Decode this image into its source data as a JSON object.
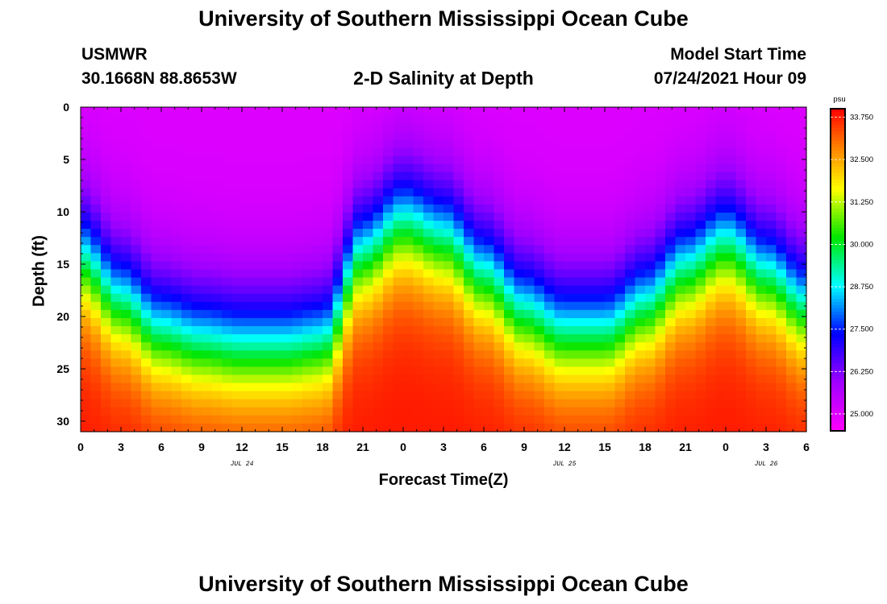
{
  "title_top": "University of Southern Mississippi Ocean Cube",
  "title_bottom": "University of Southern Mississippi Ocean Cube",
  "station": {
    "name": "USMWR",
    "coords": "30.1668N  88.8653W"
  },
  "plot_title": "2-D Salinity at Depth",
  "model": {
    "label": "Model Start Time",
    "time": "07/24/2021 Hour 09"
  },
  "chart_data": {
    "type": "heatmap",
    "title": "2-D Salinity at Depth",
    "xlabel": "Forecast Time(Z)",
    "ylabel": "Depth (ft)",
    "x_ticks": [
      "0",
      "3",
      "6",
      "9",
      "12",
      "15",
      "18",
      "21",
      "0",
      "3",
      "6",
      "9",
      "12",
      "15",
      "18",
      "21",
      "0",
      "3",
      "6"
    ],
    "x_range_hours": [
      0,
      54
    ],
    "date_labels": [
      {
        "text": "JUL 24",
        "hour": 12
      },
      {
        "text": "JUL 25",
        "hour": 36
      },
      {
        "text": "JUL 26",
        "hour": 51
      }
    ],
    "y_ticks": [
      0,
      5,
      10,
      15,
      20,
      25,
      30
    ],
    "ylim": [
      0,
      31
    ],
    "colorbar": {
      "unit": "psu",
      "min": 24.5,
      "max": 34.0,
      "ticks": [
        "33.750",
        "32.500",
        "31.250",
        "30.000",
        "28.750",
        "27.500",
        "26.250",
        "25.000"
      ]
    },
    "salinity_model": {
      "surface_psu": 25.0,
      "bottom_psu": 33.8,
      "halocline_depth_ft_by_hour": [
        [
          0,
          14.5
        ],
        [
          3,
          18.5
        ],
        [
          6,
          21.5
        ],
        [
          9,
          22.5
        ],
        [
          12,
          23.0
        ],
        [
          15,
          23.0
        ],
        [
          18,
          22.5
        ],
        [
          21,
          14.0
        ],
        [
          24,
          11.0
        ],
        [
          27,
          12.5
        ],
        [
          30,
          16.0
        ],
        [
          33,
          19.5
        ],
        [
          36,
          21.5
        ],
        [
          39,
          21.5
        ],
        [
          42,
          19.0
        ],
        [
          45,
          15.5
        ],
        [
          48,
          13.0
        ],
        [
          51,
          16.0
        ],
        [
          54,
          19.0
        ]
      ]
    }
  }
}
